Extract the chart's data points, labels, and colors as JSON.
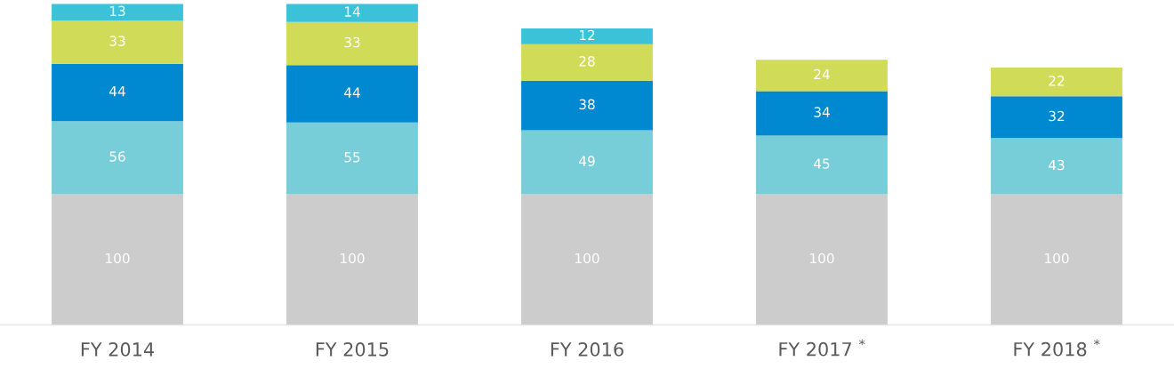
{
  "chart_data": {
    "type": "bar",
    "stacked": true,
    "data_labels": true,
    "grid": false,
    "legend": false,
    "categories": [
      "FY 2014",
      "FY 2015",
      "FY 2016",
      "FY 2017 $^{*}$",
      "FY 2018 $^{*}$"
    ],
    "series": [
      {
        "color": "#cccccc",
        "values": [
          100,
          100,
          100,
          100,
          100
        ]
      },
      {
        "color": "#77cdd8",
        "values": [
          56,
          55,
          49,
          45,
          43
        ]
      },
      {
        "color": "#0089d1",
        "values": [
          44,
          44,
          38,
          34,
          32
        ]
      },
      {
        "color": "#d0db58",
        "values": [
          33,
          33,
          28,
          24,
          22
        ]
      },
      {
        "color": "#3bc2d8",
        "values": [
          13,
          14,
          12,
          null,
          null
        ]
      }
    ]
  }
}
